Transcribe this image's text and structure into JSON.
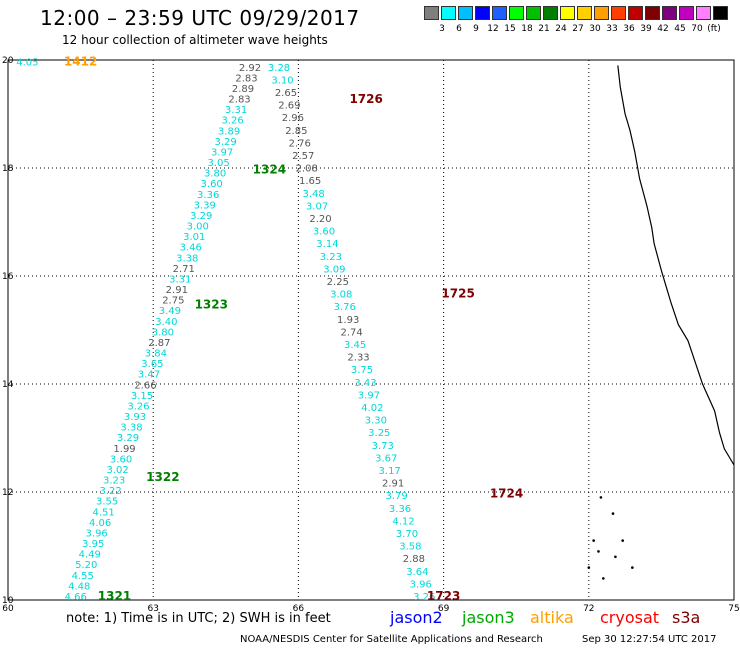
{
  "header": {
    "title": "12:00 – 23:59 UTC 09/29/2017",
    "subtitle": "12 hour collection of altimeter wave heights"
  },
  "color_scale": {
    "colors": [
      "#7f7f7f",
      "#00ffff",
      "#00bfff",
      "#0000ff",
      "#1f5fff",
      "#00ff00",
      "#00c000",
      "#007f00",
      "#ffff00",
      "#ffd000",
      "#ff9f00",
      "#ff3f00",
      "#c00000",
      "#7f0000",
      "#7f007f",
      "#bf00bf",
      "#ff7fff",
      "#000000"
    ],
    "labels": [
      "3",
      "6",
      "9",
      "12",
      "15",
      "18",
      "21",
      "24",
      "27",
      "30",
      "33",
      "36",
      "39",
      "42",
      "45",
      "70",
      "(ft)"
    ]
  },
  "axes": {
    "x_ticks": [
      "60",
      "63",
      "66",
      "69",
      "72",
      "75"
    ],
    "y_ticks": [
      "10",
      "12",
      "14",
      "16",
      "18",
      "20"
    ]
  },
  "passes": [
    {
      "label": "1412",
      "color": "#ff9f00",
      "values": [
        "4.05"
      ]
    },
    {
      "label": "1321",
      "color": "#007f00",
      "values": [
        "4.66",
        "4.48",
        "4.55",
        "5.20",
        "4.49",
        "3.95",
        "3.96",
        "4.06",
        "4.51",
        "3.55",
        "3.22",
        "3.23",
        "3.02",
        "3.60",
        "1.99",
        "3.29",
        "3.38",
        "3.93",
        "3.26",
        "3.15",
        "2.66",
        "3.47",
        "3.65",
        "3.84",
        "2.87",
        "3.80",
        "3.40",
        "3.49",
        "2.75",
        "2.91",
        "3.31",
        "2.71",
        "3.38",
        "3.46",
        "3.01",
        "3.00",
        "3.29",
        "3.39",
        "3.36",
        "3.60",
        "3.80",
        "3.05",
        "3.97",
        "3.29",
        "3.89",
        "3.26",
        "3.31",
        "2.83",
        "2.89",
        "2.83",
        "2.92"
      ]
    },
    {
      "label": "1322",
      "color": "#007f00",
      "values": []
    },
    {
      "label": "1323",
      "color": "#007f00",
      "values": []
    },
    {
      "label": "1324",
      "color": "#007f00",
      "values": []
    },
    {
      "label": "1723",
      "color": "#7f0000",
      "values": [
        "3.26",
        "3.96",
        "3.64",
        "2.88",
        "3.58",
        "3.70",
        "4.12",
        "3.36",
        "3.79",
        "2.91",
        "3.17",
        "3.67",
        "3.73",
        "3.25",
        "3.30",
        "4.02",
        "3.97",
        "3.43",
        "3.75",
        "2.33",
        "3.45",
        "2.74",
        "1.93",
        "3.76",
        "3.08",
        "2.25",
        "3.09",
        "3.23",
        "3.14",
        "3.60",
        "2.20",
        "3.07",
        "3.48",
        "1.65",
        "2.08",
        "2.57",
        "2.76",
        "2.85",
        "2.96",
        "2.69",
        "2.65",
        "3.10",
        "3.28"
      ]
    },
    {
      "label": "1724",
      "color": "#7f0000",
      "values": []
    },
    {
      "label": "1725",
      "color": "#7f0000",
      "values": []
    },
    {
      "label": "1726",
      "color": "#7f0000",
      "values": []
    }
  ],
  "footer": {
    "note": "note: 1) Time is in UTC; 2) SWH is in feet",
    "legend": [
      {
        "label": "jason2",
        "color": "#0000ff"
      },
      {
        "label": "jason3",
        "color": "#00aa00"
      },
      {
        "label": "altika",
        "color": "#ff9f00"
      },
      {
        "label": "cryosat",
        "color": "#ff0000"
      },
      {
        "label": "s3a",
        "color": "#7f0000"
      }
    ],
    "credit": "NOAA/NESDIS Center for Satellite Applications and Research",
    "timestamp": "Sep 30 12:27:54 UTC 2017"
  }
}
